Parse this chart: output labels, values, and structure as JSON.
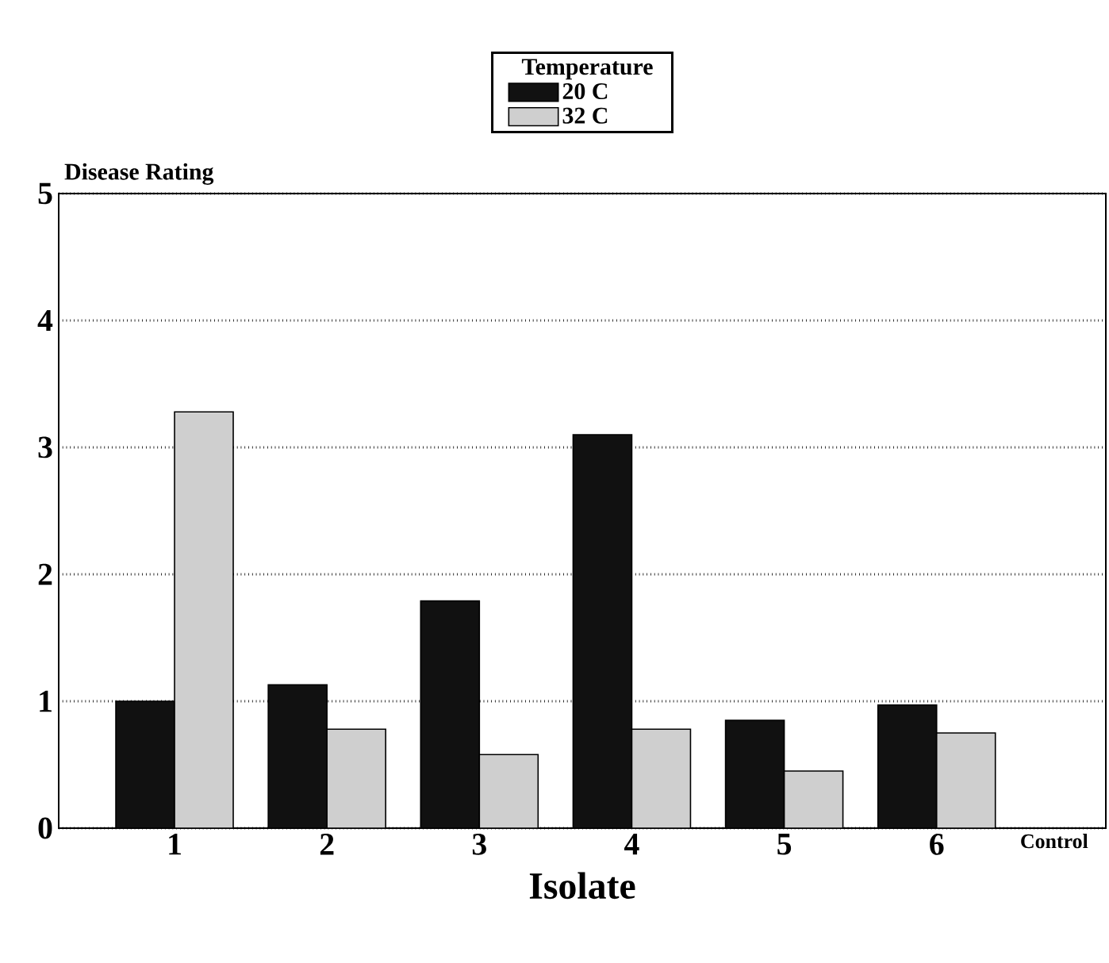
{
  "chart_data": {
    "type": "bar",
    "xlabel": "Isolate",
    "ylabel": "Disease Rating",
    "legend_title": "Temperature",
    "categories": [
      "1",
      "2",
      "3",
      "4",
      "5",
      "6",
      "Control"
    ],
    "series": [
      {
        "name": "20 C",
        "color": "#111111",
        "values": [
          1.0,
          1.13,
          1.79,
          3.1,
          0.85,
          0.97,
          0
        ]
      },
      {
        "name": "32 C",
        "color": "#cfcfcf",
        "values": [
          3.28,
          0.78,
          0.58,
          0.78,
          0.45,
          0.75,
          0
        ]
      }
    ],
    "ylim": [
      0,
      5
    ],
    "yticks": [
      0,
      1,
      2,
      3,
      4,
      5
    ],
    "grid": "y",
    "legend": "top"
  }
}
